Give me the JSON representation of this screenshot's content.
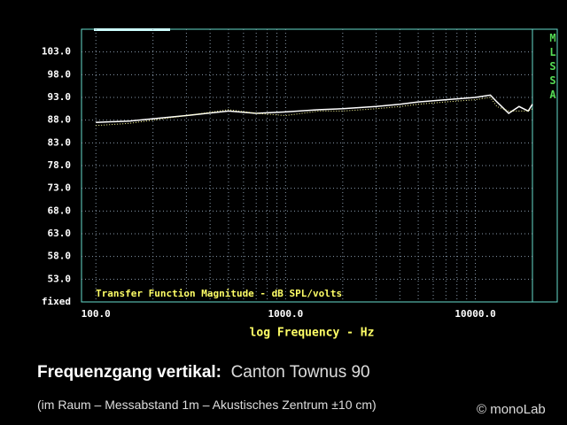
{
  "chart_data": {
    "type": "line",
    "title": "Transfer Function Magnitude - dB SPL/volts",
    "xlabel": "log Frequency - Hz",
    "side_label": "MLSSA",
    "caption_title": "Frequenzgang vertikal:",
    "caption_subject": "Canton Townus 90",
    "caption_note": "(im Raum – Messabstand 1m – Akustisches Zentrum ±10 cm)",
    "credit": "© monoLab",
    "x_scale": "log",
    "x": [
      100,
      150,
      200,
      300,
      500,
      700,
      1000,
      1500,
      2000,
      3000,
      4000,
      5000,
      7000,
      10000,
      12000,
      13000,
      15000,
      17000,
      19000,
      20000
    ],
    "series": [
      {
        "name": "solid",
        "color": "#ffffff",
        "style": "solid",
        "values": [
          87.5,
          87.8,
          88.3,
          89,
          90,
          89.5,
          89.8,
          90.3,
          90.5,
          91,
          91.5,
          92,
          92.5,
          93,
          93.5,
          92,
          89.5,
          91,
          90,
          91.5
        ]
      },
      {
        "name": "dotted",
        "color": "#ffff99",
        "style": "dotted",
        "values": [
          86.8,
          87.3,
          88,
          89,
          90.3,
          89.5,
          89,
          90,
          90,
          90.5,
          91,
          91.5,
          92,
          92.5,
          93,
          91,
          90,
          90,
          90,
          90.5
        ]
      }
    ],
    "xlim": [
      84,
      20000
    ],
    "xticks": [
      {
        "value": 100,
        "label": "100.0"
      },
      {
        "value": 1000,
        "label": "1000.0"
      },
      {
        "value": 10000,
        "label": "10000.0"
      }
    ],
    "xminorticks": [
      200,
      300,
      400,
      500,
      600,
      700,
      800,
      900,
      2000,
      3000,
      4000,
      5000,
      6000,
      7000,
      8000,
      9000
    ],
    "ylim": [
      48,
      108
    ],
    "yticks": [
      {
        "value": 48,
        "label": "fixed"
      },
      {
        "value": 53,
        "label": "53.0"
      },
      {
        "value": 58,
        "label": "58.0"
      },
      {
        "value": 63,
        "label": "63.0"
      },
      {
        "value": 68,
        "label": "68.0"
      },
      {
        "value": 73,
        "label": "73.0"
      },
      {
        "value": 78,
        "label": "78.0"
      },
      {
        "value": 83,
        "label": "83.0"
      },
      {
        "value": 88,
        "label": "88.0"
      },
      {
        "value": 93,
        "label": "93.0"
      },
      {
        "value": 98,
        "label": "98.0"
      },
      {
        "value": 103,
        "label": "103.0"
      }
    ],
    "grid": true
  }
}
